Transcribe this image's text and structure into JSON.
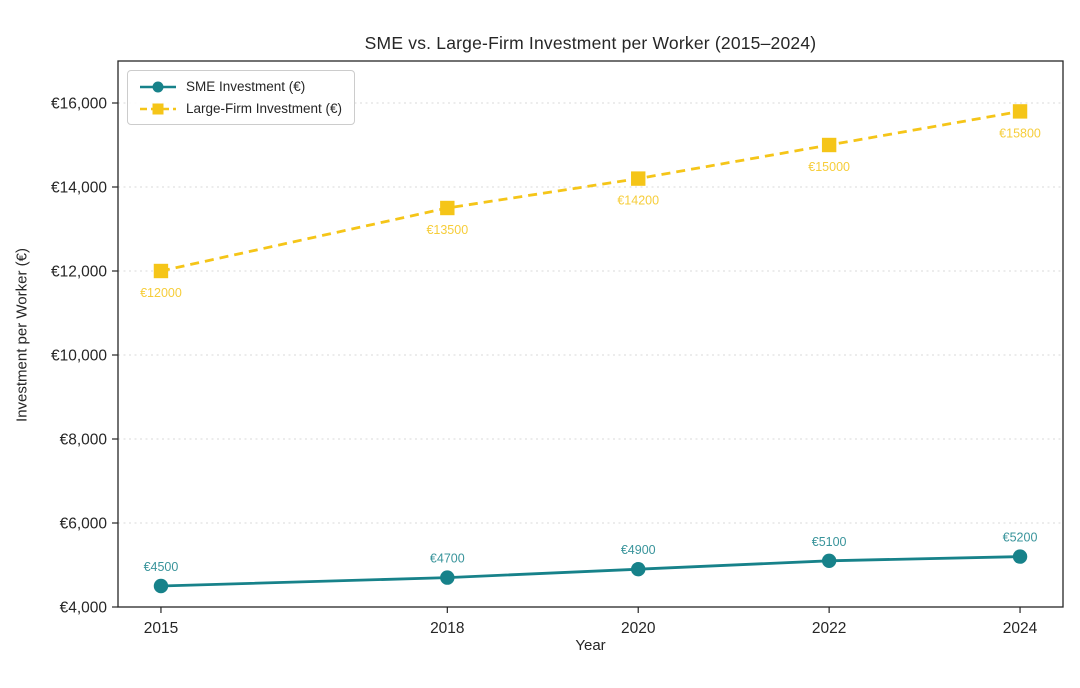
{
  "chart_data": {
    "type": "line",
    "title": "SME vs. Large-Firm Investment per Worker (2015–2024)",
    "xlabel": "Year",
    "ylabel": "Investment per Worker (€)",
    "x": [
      2015,
      2018,
      2020,
      2022,
      2024
    ],
    "xtick_labels": [
      "2015",
      "2018",
      "2020",
      "2022",
      "2024"
    ],
    "xlim": [
      2014.55,
      2024.45
    ],
    "ylim": [
      4000,
      17000
    ],
    "yticks": [
      4000,
      6000,
      8000,
      10000,
      12000,
      14000,
      16000
    ],
    "ytick_labels": [
      "€4,000",
      "€6,000",
      "€8,000",
      "€10,000",
      "€12,000",
      "€14,000",
      "€16,000"
    ],
    "grid": "horizontal-dashed",
    "grid_color": "#d9d9d9",
    "axis_color": "#262626",
    "legend_position": "upper-left",
    "series": [
      {
        "name": "SME Investment (€)",
        "values": [
          4500,
          4700,
          4900,
          5100,
          5200
        ],
        "labels": [
          "€4500",
          "€4700",
          "€4900",
          "€5100",
          "€5200"
        ],
        "label_position": "above",
        "color": "#17828A",
        "line_style": "solid",
        "marker": "circle"
      },
      {
        "name": "Large-Firm Investment (€)",
        "values": [
          12000,
          13500,
          14200,
          15000,
          15800
        ],
        "labels": [
          "€12000",
          "€13500",
          "€14200",
          "€15000",
          "€15800"
        ],
        "label_position": "below",
        "color": "#F5C518",
        "line_style": "dashed",
        "marker": "square"
      }
    ]
  }
}
